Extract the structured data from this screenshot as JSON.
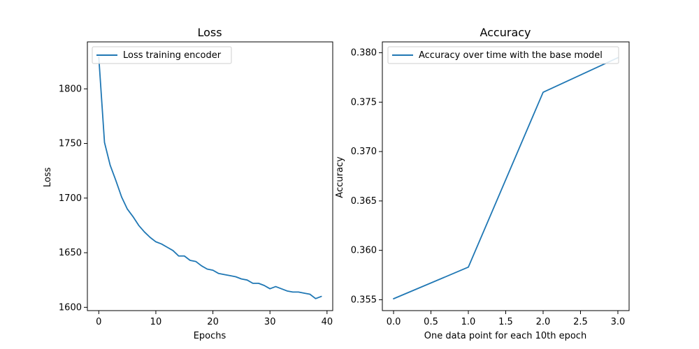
{
  "chart_data": [
    {
      "type": "line",
      "title": "Loss",
      "xlabel": "Epochs",
      "ylabel": "Loss",
      "xlim": [
        -2,
        41
      ],
      "ylim": [
        1597,
        1843
      ],
      "xticks": [
        0,
        10,
        20,
        30,
        40
      ],
      "yticks": [
        1600,
        1650,
        1700,
        1750,
        1800
      ],
      "legend_position": "upper left",
      "series": [
        {
          "name": "Loss training encoder",
          "color": "#1f77b4",
          "x": [
            0,
            1,
            2,
            3,
            4,
            5,
            6,
            7,
            8,
            9,
            10,
            11,
            12,
            13,
            14,
            15,
            16,
            17,
            18,
            19,
            20,
            21,
            22,
            23,
            24,
            25,
            26,
            27,
            28,
            29,
            30,
            31,
            32,
            33,
            34,
            35,
            36,
            37,
            38,
            39
          ],
          "y": [
            1829,
            1751,
            1730,
            1716,
            1701,
            1690,
            1683,
            1675,
            1669,
            1664,
            1660,
            1658,
            1655,
            1652,
            1647,
            1647,
            1643,
            1642,
            1638,
            1635,
            1634,
            1631,
            1630,
            1629,
            1628,
            1626,
            1625,
            1622,
            1622,
            1620,
            1617,
            1619,
            1617,
            1615,
            1614,
            1614,
            1613,
            1612,
            1608,
            1610
          ]
        }
      ]
    },
    {
      "type": "line",
      "title": "Accuracy",
      "xlabel": "One data point for each 10th epoch",
      "ylabel": "Accuracy",
      "xlim": [
        -0.15,
        3.15
      ],
      "ylim": [
        0.3539,
        0.3811
      ],
      "xticks": [
        0.0,
        0.5,
        1.0,
        1.5,
        2.0,
        2.5,
        3.0
      ],
      "xtick_labels": [
        "0.0",
        "0.5",
        "1.0",
        "1.5",
        "2.0",
        "2.5",
        "3.0"
      ],
      "yticks": [
        0.355,
        0.36,
        0.365,
        0.37,
        0.375,
        0.38
      ],
      "ytick_labels": [
        "0.355",
        "0.360",
        "0.365",
        "0.370",
        "0.375",
        "0.380"
      ],
      "legend_position": "upper left",
      "series": [
        {
          "name": "Accuracy over time with the base model",
          "color": "#1f77b4",
          "x": [
            0,
            1,
            2,
            3
          ],
          "y": [
            0.3551,
            0.3583,
            0.376,
            0.3795
          ]
        }
      ]
    }
  ]
}
